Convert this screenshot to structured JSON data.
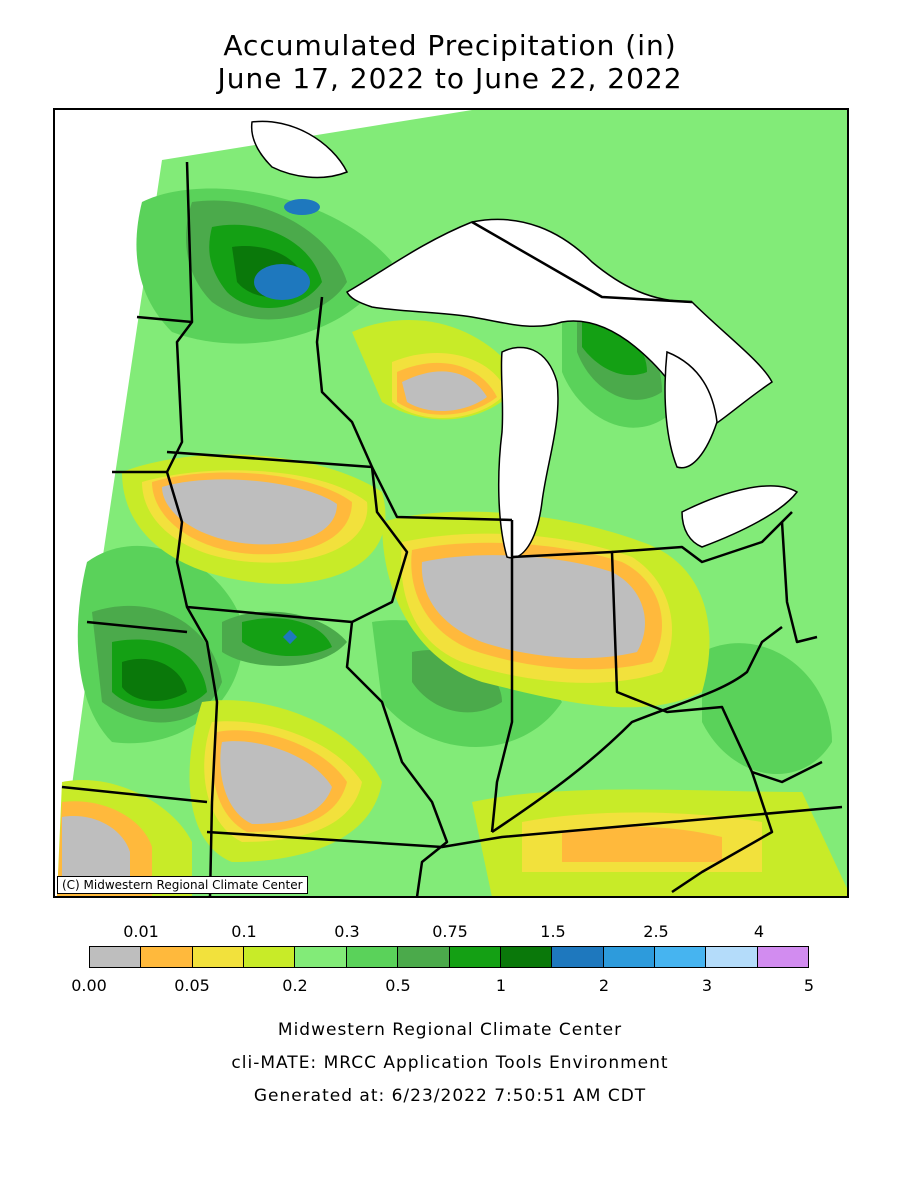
{
  "title": {
    "line1": "Accumulated Precipitation (in)",
    "line2": "June 17, 2022 to June 22, 2022"
  },
  "map": {
    "copyright": "(C) Midwestern Regional Climate Center"
  },
  "legend": {
    "top_labels": [
      "0.01",
      "0.1",
      "0.3",
      "0.75",
      "1.5",
      "2.5",
      "4"
    ],
    "bottom_labels": [
      "0.00",
      "0.05",
      "0.2",
      "0.5",
      "1",
      "2",
      "3",
      "5"
    ],
    "colors": [
      "#bebebe",
      "#ffb93c",
      "#f2e13c",
      "#c8eb28",
      "#82eb78",
      "#5ad25a",
      "#4baa4b",
      "#14a014",
      "#0a780a",
      "#1e78be",
      "#2d9bdc",
      "#46b4f0",
      "#b4dcfa",
      "#d28cf0"
    ]
  },
  "credits": {
    "line1": "Midwestern Regional Climate Center",
    "line2": "cli-MATE: MRCC Application Tools Environment",
    "line3": "Generated at: 6/23/2022 7:50:51 AM CDT"
  }
}
